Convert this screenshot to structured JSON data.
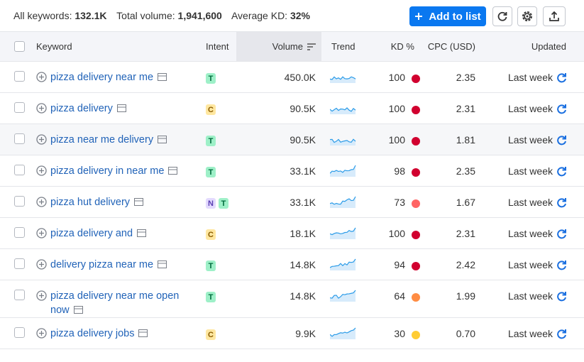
{
  "summary": {
    "all_keywords_label": "All keywords:",
    "all_keywords": "132.1K",
    "total_volume_label": "Total volume:",
    "total_volume": "1,941,600",
    "average_kd_label": "Average KD:",
    "average_kd": "32%"
  },
  "toolbar": {
    "add_to_list": "Add to list"
  },
  "table": {
    "columns": [
      "Keyword",
      "Intent",
      "Volume",
      "Trend",
      "KD %",
      "CPC (USD)",
      "Updated"
    ],
    "rows": [
      {
        "keyword": "pizza delivery near me",
        "intent": [
          "T"
        ],
        "volume": "450.0K",
        "kd": 100,
        "kd_color": "#d1002f",
        "cpc": "2.35",
        "updated": "Last week"
      },
      {
        "keyword": "pizza delivery",
        "intent": [
          "C"
        ],
        "volume": "90.5K",
        "kd": 100,
        "kd_color": "#d1002f",
        "cpc": "2.31",
        "updated": "Last week"
      },
      {
        "keyword": "pizza near me delivery",
        "intent": [
          "T"
        ],
        "volume": "90.5K",
        "kd": 100,
        "kd_color": "#d1002f",
        "cpc": "1.81",
        "updated": "Last week"
      },
      {
        "keyword": "pizza delivery in near me",
        "intent": [
          "T"
        ],
        "volume": "33.1K",
        "kd": 98,
        "kd_color": "#d1002f",
        "cpc": "2.35",
        "updated": "Last week"
      },
      {
        "keyword": "pizza hut delivery",
        "intent": [
          "N",
          "T"
        ],
        "volume": "33.1K",
        "kd": 73,
        "kd_color": "#ff6464",
        "cpc": "1.67",
        "updated": "Last week"
      },
      {
        "keyword": "pizza delivery and",
        "intent": [
          "C"
        ],
        "volume": "18.1K",
        "kd": 100,
        "kd_color": "#d1002f",
        "cpc": "2.31",
        "updated": "Last week"
      },
      {
        "keyword": "delivery pizza near me",
        "intent": [
          "T"
        ],
        "volume": "14.8K",
        "kd": 94,
        "kd_color": "#d1002f",
        "cpc": "2.42",
        "updated": "Last week"
      },
      {
        "keyword": "pizza delivery near me open now",
        "intent": [
          "T"
        ],
        "volume": "14.8K",
        "kd": 64,
        "kd_color": "#ff8c43",
        "cpc": "1.99",
        "updated": "Last week"
      },
      {
        "keyword": "pizza delivery jobs",
        "intent": [
          "C"
        ],
        "volume": "9.9K",
        "kd": 30,
        "kd_color": "#ffcc33",
        "cpc": "0.70",
        "updated": "Last week"
      }
    ]
  }
}
